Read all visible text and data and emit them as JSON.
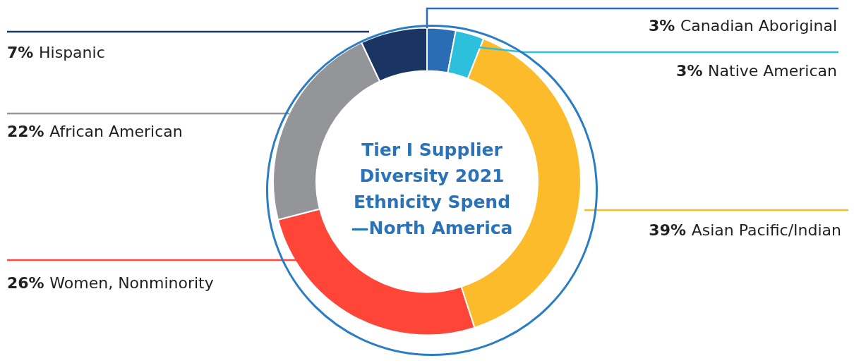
{
  "chart_data": {
    "type": "donut",
    "title": "Tier I Supplier\nDiversity 2021\nEthnicity Spend\n—North America",
    "categories": [
      "Canadian Aboriginal",
      "Native American",
      "Asian Pacific/Indian",
      "Women, Nonminority",
      "African American",
      "Hispanic"
    ],
    "values": [
      3,
      3,
      39,
      26,
      22,
      7
    ],
    "colors": [
      "#2a6db5",
      "#2cc0dc",
      "#fbbb2a",
      "#fe4538",
      "#939598",
      "#1b3562"
    ],
    "value_labels": [
      "3%",
      "3%",
      "39%",
      "26%",
      "22%",
      "7%"
    ],
    "legend": false
  }
}
